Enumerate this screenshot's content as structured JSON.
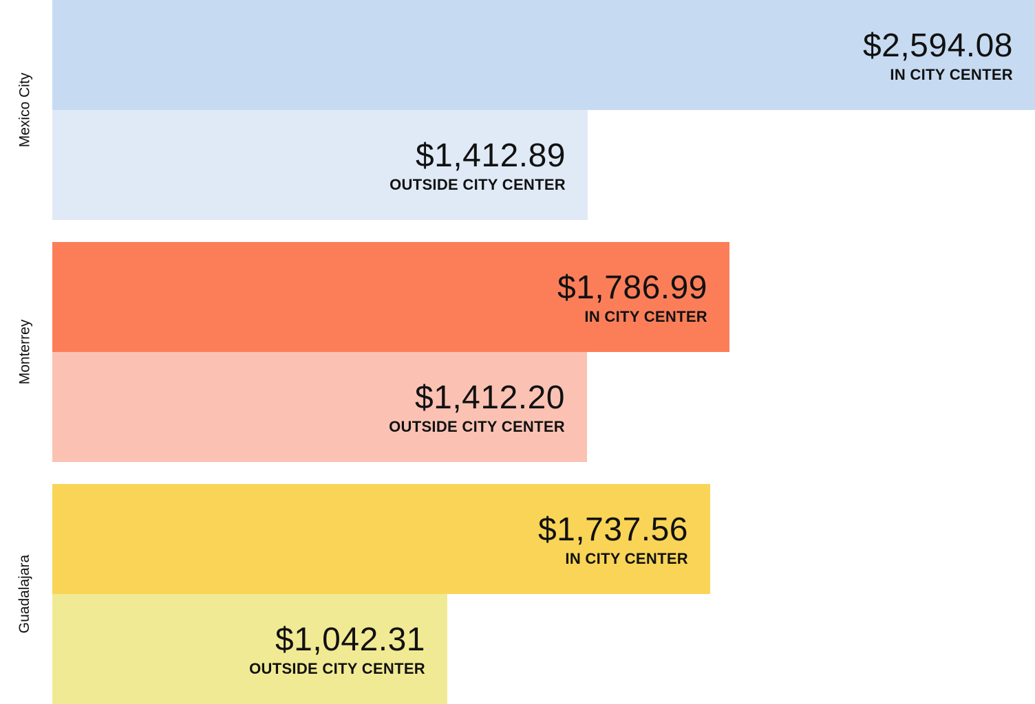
{
  "chart_data": {
    "type": "bar",
    "orientation": "horizontal",
    "categories": [
      "Mexico City",
      "Monterrey",
      "Guadalajara"
    ],
    "xlim": [
      0,
      2594.08
    ],
    "grid": false,
    "legend": "none",
    "groups": [
      {
        "city": "Mexico City",
        "bars": [
          {
            "value": 2594.08,
            "value_label": "$2,594.08",
            "caption": "IN CITY CENTER",
            "color": "#c6dbf2"
          },
          {
            "value": 1412.89,
            "value_label": "$1,412.89",
            "caption": "OUTSIDE CITY CENTER",
            "color": "#e0eaf7"
          }
        ]
      },
      {
        "city": "Monterrey",
        "bars": [
          {
            "value": 1786.99,
            "value_label": "$1,786.99",
            "caption": "IN CITY CENTER",
            "color": "#fc7e59"
          },
          {
            "value": 1412.2,
            "value_label": "$1,412.20",
            "caption": "OUTSIDE CITY CENTER",
            "color": "#fbc2b4"
          }
        ]
      },
      {
        "city": "Guadalajara",
        "bars": [
          {
            "value": 1737.56,
            "value_label": "$1,737.56",
            "caption": "IN CITY CENTER",
            "color": "#f9d456"
          },
          {
            "value": 1042.31,
            "value_label": "$1,042.31",
            "caption": "OUTSIDE CITY CENTER",
            "color": "#f1ea94"
          }
        ]
      }
    ]
  }
}
